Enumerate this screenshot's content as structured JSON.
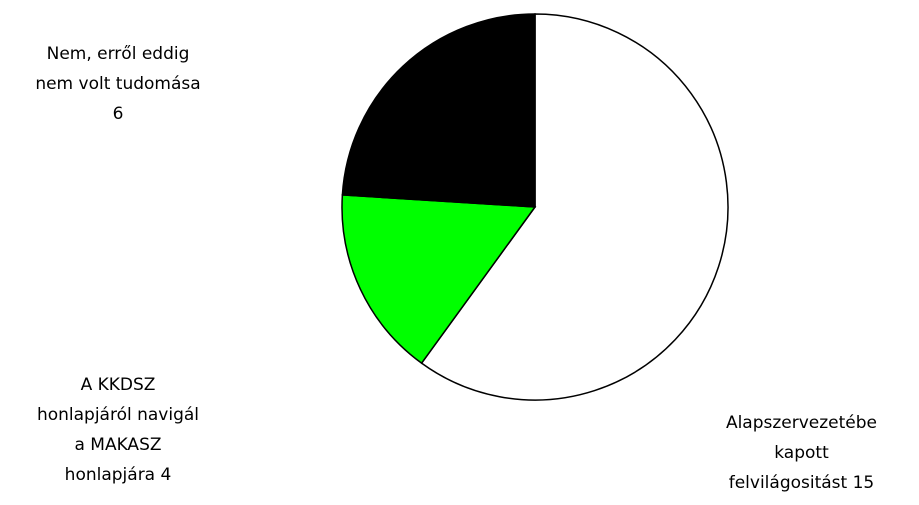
{
  "chart_data": {
    "type": "pie",
    "slices": [
      {
        "label_lines": [
          "Alapszervezetébe",
          "kapott",
          "felvilágositást 15"
        ],
        "value": 15,
        "color": "#ffffff"
      },
      {
        "label_lines": [
          "A KKDSZ",
          "honlapjáról navigál",
          "a MAKASZ",
          "honlapjára 4"
        ],
        "value": 4,
        "color": "#00ff00"
      },
      {
        "label_lines": [
          "Nem, erről eddig",
          "nem volt tudomása",
          "6"
        ],
        "value": 6,
        "color": "#000000"
      }
    ],
    "stroke_color": "#000000",
    "start_direction": "top",
    "direction": "clockwise"
  }
}
